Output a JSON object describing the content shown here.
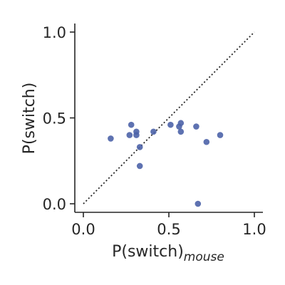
{
  "chart_data": {
    "type": "scatter",
    "xlabel": "P(switch)",
    "xlabel_subscript": "mouse",
    "ylabel": "P(switch)",
    "xlim": [
      -0.05,
      1.05
    ],
    "ylim": [
      -0.05,
      1.05
    ],
    "x_ticks": [
      0.0,
      0.5,
      1.0
    ],
    "y_ticks": [
      0.0,
      0.5,
      1.0
    ],
    "x_tick_labels": [
      "0.0",
      "0.5",
      "1.0"
    ],
    "y_tick_labels": [
      "0.0",
      "0.5",
      "1.0"
    ],
    "grid": false,
    "reference_line": {
      "style": "dotted",
      "from": [
        0,
        0
      ],
      "to": [
        1,
        1
      ]
    },
    "point_color": "#4c63a8",
    "points": [
      {
        "x": 0.16,
        "y": 0.38
      },
      {
        "x": 0.27,
        "y": 0.4
      },
      {
        "x": 0.28,
        "y": 0.46
      },
      {
        "x": 0.31,
        "y": 0.42
      },
      {
        "x": 0.31,
        "y": 0.4
      },
      {
        "x": 0.33,
        "y": 0.33
      },
      {
        "x": 0.33,
        "y": 0.22
      },
      {
        "x": 0.41,
        "y": 0.42
      },
      {
        "x": 0.51,
        "y": 0.46
      },
      {
        "x": 0.56,
        "y": 0.45
      },
      {
        "x": 0.57,
        "y": 0.47
      },
      {
        "x": 0.57,
        "y": 0.42
      },
      {
        "x": 0.66,
        "y": 0.45
      },
      {
        "x": 0.67,
        "y": 0.0
      },
      {
        "x": 0.72,
        "y": 0.36
      },
      {
        "x": 0.8,
        "y": 0.4
      }
    ]
  }
}
